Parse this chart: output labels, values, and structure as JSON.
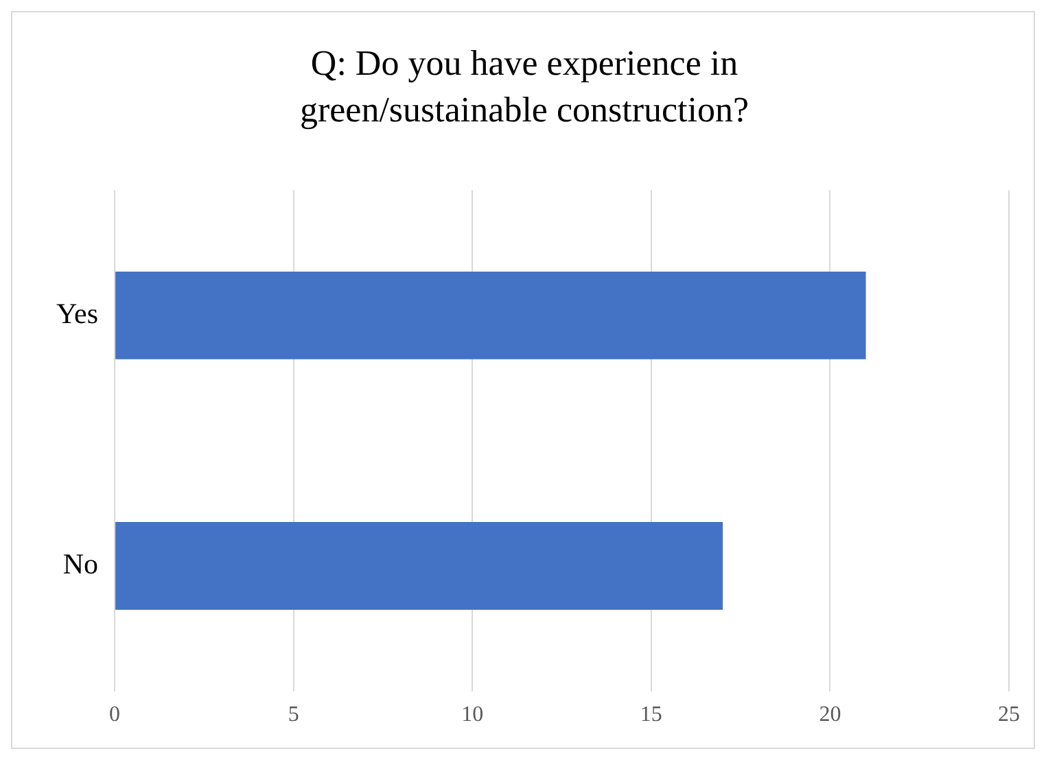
{
  "chart_data": {
    "type": "bar",
    "orientation": "horizontal",
    "title": "Q: Do you have experience in green/sustainable construction?",
    "categories": [
      "Yes",
      "No"
    ],
    "values": [
      21,
      17
    ],
    "color": "#4472c4",
    "xlim": [
      0,
      25
    ],
    "xticks": [
      0,
      5,
      10,
      15,
      20,
      25
    ],
    "grid": "x",
    "legend": false
  }
}
